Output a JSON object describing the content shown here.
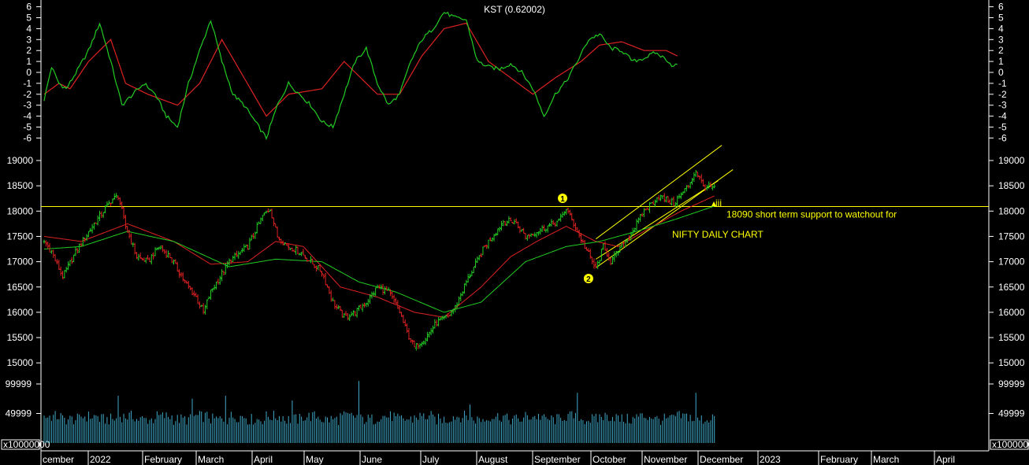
{
  "chart_data": {
    "type": "candlestick",
    "colors": {
      "background": "#000000",
      "up": "#22cc22",
      "down": "#dd2222",
      "kst_line": "#22cc22",
      "kst_signal": "#dd2222",
      "fast_ma": "#dd2222",
      "slow_ma": "#22cc22",
      "volume": "#3fa9c9",
      "annotation": "#ffff00",
      "axis_text": "#ffffff"
    },
    "x_axis": {
      "labels": [
        "cember",
        "2022",
        "February",
        "March",
        "April",
        "May",
        "June",
        "July",
        "August",
        "September",
        "October",
        "November",
        "December",
        "2023",
        "February",
        "March",
        "April"
      ]
    },
    "kst": {
      "title": "KST (0.62002)",
      "yticks": [
        "6",
        "5",
        "4",
        "3",
        "2",
        "1",
        "0",
        "-1",
        "-2",
        "-3",
        "-4",
        "-5",
        "-6"
      ],
      "ylim": [
        -6,
        6
      ],
      "kst_anchors": [
        [
          0,
          -2.5
        ],
        [
          4,
          0.5
        ],
        [
          8,
          -1
        ],
        [
          12,
          -1.5
        ],
        [
          18,
          0.2
        ],
        [
          24,
          2
        ],
        [
          30,
          4.5
        ],
        [
          36,
          1
        ],
        [
          42,
          -3
        ],
        [
          48,
          -2
        ],
        [
          54,
          -1
        ],
        [
          60,
          -2
        ],
        [
          66,
          -4
        ],
        [
          72,
          -5
        ],
        [
          78,
          -1
        ],
        [
          84,
          2
        ],
        [
          90,
          4.8
        ],
        [
          96,
          1
        ],
        [
          102,
          -2
        ],
        [
          108,
          -3
        ],
        [
          114,
          -4.5
        ],
        [
          120,
          -6
        ],
        [
          126,
          -3
        ],
        [
          132,
          -1
        ],
        [
          138,
          -2
        ],
        [
          144,
          -3
        ],
        [
          150,
          -4.5
        ],
        [
          156,
          -5
        ],
        [
          162,
          -2
        ],
        [
          168,
          1
        ],
        [
          174,
          2.2
        ],
        [
          180,
          -1
        ],
        [
          186,
          -3
        ],
        [
          192,
          -2
        ],
        [
          198,
          1
        ],
        [
          204,
          3
        ],
        [
          210,
          4
        ],
        [
          216,
          5.5
        ],
        [
          222,
          5
        ],
        [
          228,
          4.8
        ],
        [
          234,
          1
        ],
        [
          240,
          0.5
        ],
        [
          246,
          0.3
        ],
        [
          252,
          0.8
        ],
        [
          258,
          0
        ],
        [
          264,
          -1.5
        ],
        [
          270,
          -4
        ],
        [
          276,
          -2
        ],
        [
          282,
          -0.8
        ],
        [
          288,
          1
        ],
        [
          294,
          3
        ],
        [
          300,
          3.5
        ],
        [
          306,
          2.2
        ],
        [
          312,
          2
        ],
        [
          318,
          1
        ],
        [
          324,
          1.3
        ],
        [
          330,
          1.8
        ],
        [
          336,
          1.2
        ],
        [
          340,
          0.5
        ],
        [
          342,
          0.8
        ]
      ],
      "signal_anchors": [
        [
          0,
          -2
        ],
        [
          8,
          -1
        ],
        [
          14,
          -1.5
        ],
        [
          24,
          1
        ],
        [
          36,
          3
        ],
        [
          44,
          -1
        ],
        [
          56,
          -2
        ],
        [
          72,
          -3
        ],
        [
          84,
          -1
        ],
        [
          96,
          3
        ],
        [
          108,
          -0.5
        ],
        [
          120,
          -4
        ],
        [
          132,
          -2
        ],
        [
          150,
          -1.5
        ],
        [
          162,
          1
        ],
        [
          180,
          -2
        ],
        [
          192,
          -2
        ],
        [
          204,
          1.5
        ],
        [
          216,
          4
        ],
        [
          228,
          4.5
        ],
        [
          240,
          1
        ],
        [
          252,
          -0.5
        ],
        [
          264,
          -2
        ],
        [
          276,
          -0.5
        ],
        [
          290,
          1
        ],
        [
          300,
          2.5
        ],
        [
          312,
          2.8
        ],
        [
          324,
          2
        ],
        [
          336,
          2
        ],
        [
          342,
          1.5
        ]
      ]
    },
    "price": {
      "yticks": [
        19000,
        18500,
        18000,
        17500,
        17000,
        16500,
        16000,
        15500,
        15000
      ],
      "ylim": [
        14900,
        19150
      ],
      "close_anchors": [
        [
          0,
          17400
        ],
        [
          4,
          17200
        ],
        [
          10,
          16700
        ],
        [
          18,
          17250
        ],
        [
          26,
          17700
        ],
        [
          36,
          18200
        ],
        [
          40,
          18300
        ],
        [
          44,
          17700
        ],
        [
          50,
          17100
        ],
        [
          56,
          17000
        ],
        [
          62,
          17300
        ],
        [
          68,
          17100
        ],
        [
          76,
          16600
        ],
        [
          82,
          16300
        ],
        [
          86,
          16000
        ],
        [
          90,
          16400
        ],
        [
          100,
          17000
        ],
        [
          110,
          17300
        ],
        [
          118,
          17900
        ],
        [
          122,
          18050
        ],
        [
          126,
          17500
        ],
        [
          132,
          17300
        ],
        [
          138,
          17200
        ],
        [
          144,
          17000
        ],
        [
          150,
          16800
        ],
        [
          156,
          16200
        ],
        [
          162,
          15900
        ],
        [
          168,
          16000
        ],
        [
          174,
          16200
        ],
        [
          180,
          16500
        ],
        [
          186,
          16400
        ],
        [
          192,
          16000
        ],
        [
          196,
          15600
        ],
        [
          200,
          15300
        ],
        [
          206,
          15500
        ],
        [
          212,
          15800
        ],
        [
          218,
          15900
        ],
        [
          222,
          16100
        ],
        [
          228,
          16600
        ],
        [
          238,
          17300
        ],
        [
          248,
          17800
        ],
        [
          254,
          17800
        ],
        [
          260,
          17500
        ],
        [
          266,
          17600
        ],
        [
          272,
          17700
        ],
        [
          278,
          17800
        ],
        [
          282,
          18050
        ],
        [
          288,
          17600
        ],
        [
          292,
          17300
        ],
        [
          296,
          17000
        ],
        [
          298,
          16850
        ],
        [
          302,
          17300
        ],
        [
          306,
          17000
        ],
        [
          310,
          17200
        ],
        [
          316,
          17500
        ],
        [
          324,
          18000
        ],
        [
          332,
          18300
        ],
        [
          340,
          18150
        ],
        [
          348,
          18500
        ],
        [
          352,
          18800
        ],
        [
          356,
          18500
        ],
        [
          362,
          18450
        ]
      ],
      "fast_ma_anchors": [
        [
          0,
          17500
        ],
        [
          20,
          17400
        ],
        [
          45,
          17750
        ],
        [
          70,
          17400
        ],
        [
          90,
          16950
        ],
        [
          110,
          17000
        ],
        [
          125,
          17400
        ],
        [
          140,
          17300
        ],
        [
          160,
          16500
        ],
        [
          180,
          16300
        ],
        [
          200,
          16000
        ],
        [
          216,
          15900
        ],
        [
          236,
          16500
        ],
        [
          252,
          17100
        ],
        [
          266,
          17400
        ],
        [
          282,
          17700
        ],
        [
          298,
          17400
        ],
        [
          310,
          17300
        ],
        [
          324,
          17600
        ],
        [
          344,
          18000
        ],
        [
          362,
          18300
        ]
      ],
      "slow_ma_anchors": [
        [
          0,
          17250
        ],
        [
          20,
          17300
        ],
        [
          45,
          17600
        ],
        [
          70,
          17400
        ],
        [
          100,
          16900
        ],
        [
          125,
          17050
        ],
        [
          150,
          17000
        ],
        [
          170,
          16600
        ],
        [
          190,
          16400
        ],
        [
          216,
          16000
        ],
        [
          236,
          16200
        ],
        [
          260,
          17000
        ],
        [
          282,
          17300
        ],
        [
          300,
          17400
        ],
        [
          320,
          17600
        ],
        [
          342,
          17850
        ],
        [
          362,
          18100
        ]
      ],
      "support": {
        "value": 18090,
        "label": "18090 short term support to watchout for"
      },
      "chart_label": "NIFTY DAILY CHART",
      "wave_markers": [
        "1",
        "2"
      ],
      "small_marker": "iii",
      "channel": {
        "upper": [
          [
            298,
            17050
          ],
          [
            364,
            18600
          ]
        ],
        "lower": [
          [
            298,
            16880
          ],
          [
            372,
            18820
          ]
        ],
        "top": [
          [
            298,
            17450
          ],
          [
            366,
            19300
          ]
        ]
      }
    },
    "volume": {
      "yticks": [
        "99999",
        "49999"
      ],
      "ylim": [
        0,
        110000
      ],
      "multiplier_label": "x10000000",
      "spikes": [
        [
          40,
          80000
        ],
        [
          80,
          75000
        ],
        [
          98,
          80000
        ],
        [
          134,
          72000
        ],
        [
          170,
          105000
        ],
        [
          230,
          65000
        ],
        [
          288,
          85000
        ],
        [
          352,
          85000
        ]
      ]
    }
  }
}
